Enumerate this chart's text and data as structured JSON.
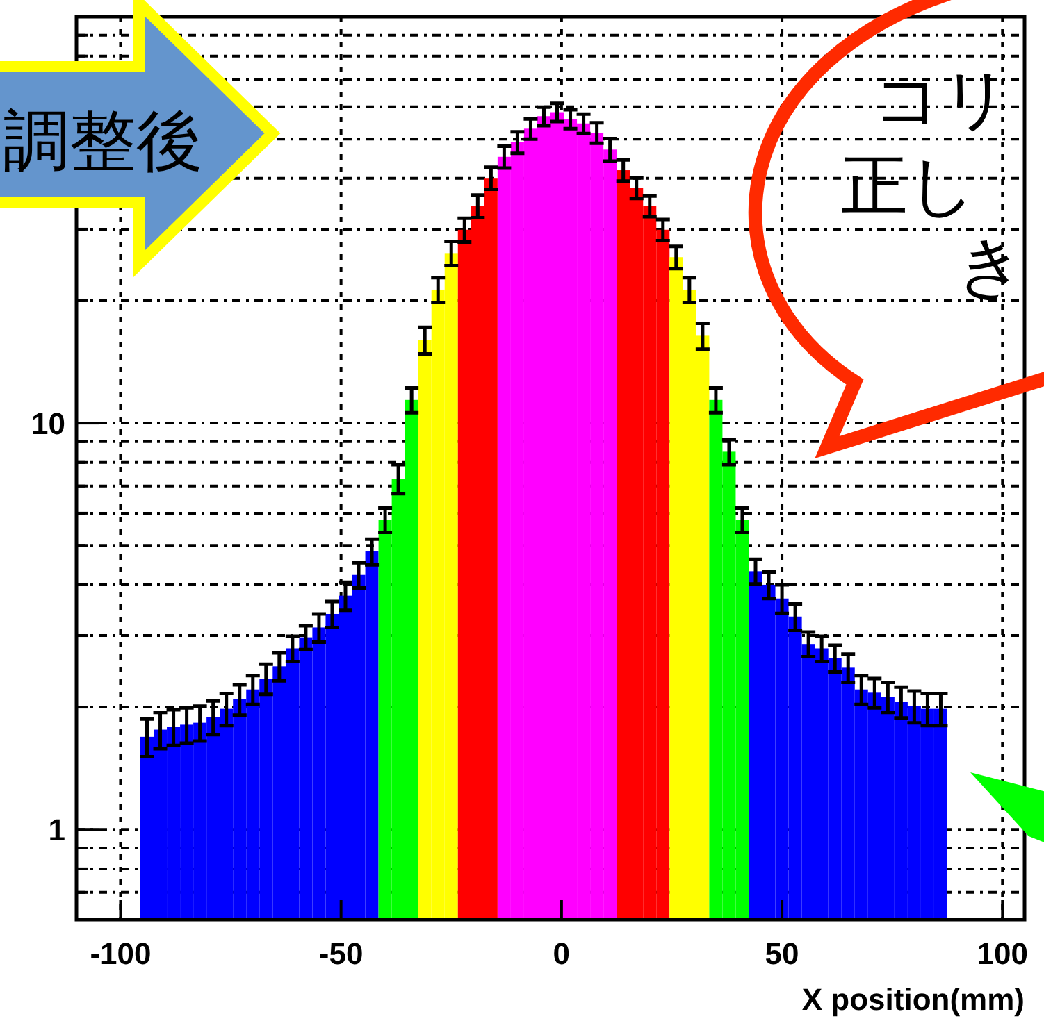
{
  "chart_data": {
    "type": "histogram",
    "bins": [
      -95.5,
      -92.5,
      -89.5,
      -86.5,
      -83.5,
      -80.5,
      -77.5,
      -74.5,
      -71.5,
      -68.5,
      -65.5,
      -62.5,
      -59.5,
      -56.5,
      -53.5,
      -50.5,
      -47.5,
      -44.5,
      -41.5,
      -38.5,
      -35.5,
      -32.5,
      -29.5,
      -26.5,
      -23.5,
      -20.5,
      -17.5,
      -14.5,
      -11.5,
      -8.5,
      -5.5,
      -2.5,
      0.5,
      3.5,
      6.5,
      9.5,
      12.5,
      15.5,
      18.5,
      21.5,
      24.5,
      27.5,
      30.5,
      33.5,
      36.5,
      39.5,
      42.5,
      45.5,
      48.5,
      51.5,
      54.5,
      57.5,
      60.5,
      63.5,
      66.5,
      69.5,
      72.5,
      75.5,
      78.5,
      81.5,
      84.5,
      87.5
    ],
    "values": [
      1.69,
      1.76,
      1.79,
      1.81,
      1.83,
      1.89,
      1.98,
      2.09,
      2.21,
      2.35,
      2.52,
      2.79,
      2.97,
      3.14,
      3.39,
      3.76,
      4.23,
      4.83,
      5.78,
      7.3,
      11.4,
      16.0,
      21.3,
      26.2,
      29.9,
      34.2,
      40.1,
      45.2,
      49.1,
      53.0,
      56.9,
      58.2,
      56.0,
      54.6,
      51.8,
      47.1,
      41.9,
      37.9,
      34.2,
      29.9,
      25.6,
      21.3,
      16.4,
      11.4,
      8.5,
      5.78,
      4.32,
      4.0,
      3.7,
      3.34,
      2.86,
      2.79,
      2.64,
      2.5,
      2.21,
      2.17,
      2.12,
      2.06,
      2.01,
      1.98,
      1.98
    ],
    "errors": [
      0.18,
      0.18,
      0.18,
      0.18,
      0.18,
      0.18,
      0.18,
      0.18,
      0.18,
      0.2,
      0.2,
      0.2,
      0.2,
      0.25,
      0.25,
      0.3,
      0.3,
      0.35,
      0.4,
      0.6,
      0.8,
      1.2,
      1.5,
      1.8,
      2,
      2.2,
      2.5,
      2.8,
      3,
      3,
      3,
      3,
      3,
      3,
      3,
      3,
      2.5,
      2.2,
      2,
      1.8,
      1.6,
      1.5,
      1.2,
      0.8,
      0.6,
      0.4,
      0.3,
      0.3,
      0.3,
      0.25,
      0.2,
      0.2,
      0.2,
      0.2,
      0.18,
      0.18,
      0.18,
      0.18,
      0.18,
      0.18,
      0.18
    ],
    "colors": [
      "#0000ff",
      "#0000ff",
      "#0000ff",
      "#0000ff",
      "#0000ff",
      "#0000ff",
      "#0000ff",
      "#0000ff",
      "#0000ff",
      "#0000ff",
      "#0000ff",
      "#0000ff",
      "#0000ff",
      "#0000ff",
      "#0000ff",
      "#0000ff",
      "#0000ff",
      "#0000ff",
      "#00ff00",
      "#00ff00",
      "#00ff00",
      "#ffff00",
      "#ffff00",
      "#ffff00",
      "#ff0000",
      "#ff0000",
      "#ff0000",
      "#ff00ff",
      "#ff00ff",
      "#ff00ff",
      "#ff00ff",
      "#ff00ff",
      "#ff00ff",
      "#ff00ff",
      "#ff00ff",
      "#ff00ff",
      "#ff0000",
      "#ff0000",
      "#ff0000",
      "#ff0000",
      "#ffff00",
      "#ffff00",
      "#ffff00",
      "#00ff00",
      "#00ff00",
      "#00ff00",
      "#0000ff",
      "#0000ff",
      "#0000ff",
      "#0000ff",
      "#0000ff",
      "#0000ff",
      "#0000ff",
      "#0000ff",
      "#0000ff",
      "#0000ff",
      "#0000ff",
      "#0000ff",
      "#0000ff",
      "#0000ff",
      "#0000ff"
    ],
    "xlabel": "X position(mm)",
    "xlim": [
      -110,
      105
    ],
    "xticks": [
      -100,
      -50,
      0,
      50,
      100
    ],
    "ylim": [
      0.6,
      100
    ],
    "yticks": [
      {
        "value": 0.7,
        "label": null
      },
      {
        "value": 0.8,
        "label": null
      },
      {
        "value": 0.9,
        "label": null
      },
      1,
      {
        "value": 2,
        "label": null
      },
      {
        "value": 3,
        "label": null
      },
      {
        "value": 4,
        "label": null
      },
      {
        "value": 5,
        "label": null
      },
      {
        "value": 6,
        "label": null
      },
      {
        "value": 7,
        "label": null
      },
      {
        "value": 8,
        "label": null
      },
      {
        "value": 9,
        "label": null
      },
      10,
      {
        "value": 20,
        "label": null
      },
      {
        "value": 30,
        "label": null
      },
      {
        "value": 40,
        "label": null
      },
      {
        "value": 50,
        "label": null
      },
      {
        "value": 60,
        "label": null
      },
      {
        "value": 70,
        "label": null
      },
      {
        "value": 80,
        "label": null
      },
      {
        "value": 90,
        "label": null
      }
    ],
    "log": "y",
    "grid": true,
    "annotations": [
      "調整後",
      "コリ",
      "正し",
      "き"
    ]
  }
}
